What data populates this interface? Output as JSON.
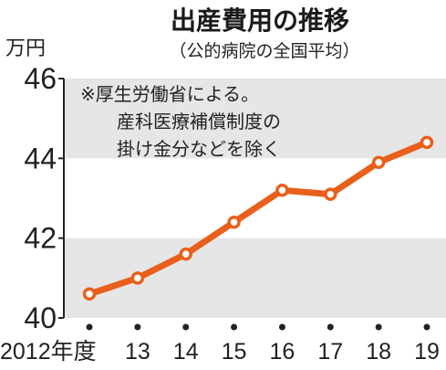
{
  "chart_data": {
    "type": "line",
    "title": "出産費用の推移",
    "subtitle": "（公的病院の全国平均）",
    "unit": "万円",
    "categories": [
      "2012年度",
      "13",
      "14",
      "15",
      "16",
      "17",
      "18",
      "19"
    ],
    "series": [
      {
        "values": [
          40.6,
          41.0,
          41.6,
          42.4,
          43.2,
          43.1,
          43.9,
          44.4
        ]
      }
    ],
    "ylim": [
      40,
      46
    ],
    "yticks": [
      "40",
      "42",
      "44",
      "46"
    ],
    "note": [
      "※厚生労働省による。",
      "産科医療補償制度の",
      "掛け金分などを除く"
    ],
    "colors": {
      "line": "#e8601c",
      "marker_fill": "#ffffff",
      "band": "#e6e6e6",
      "axis": "#222222"
    }
  }
}
